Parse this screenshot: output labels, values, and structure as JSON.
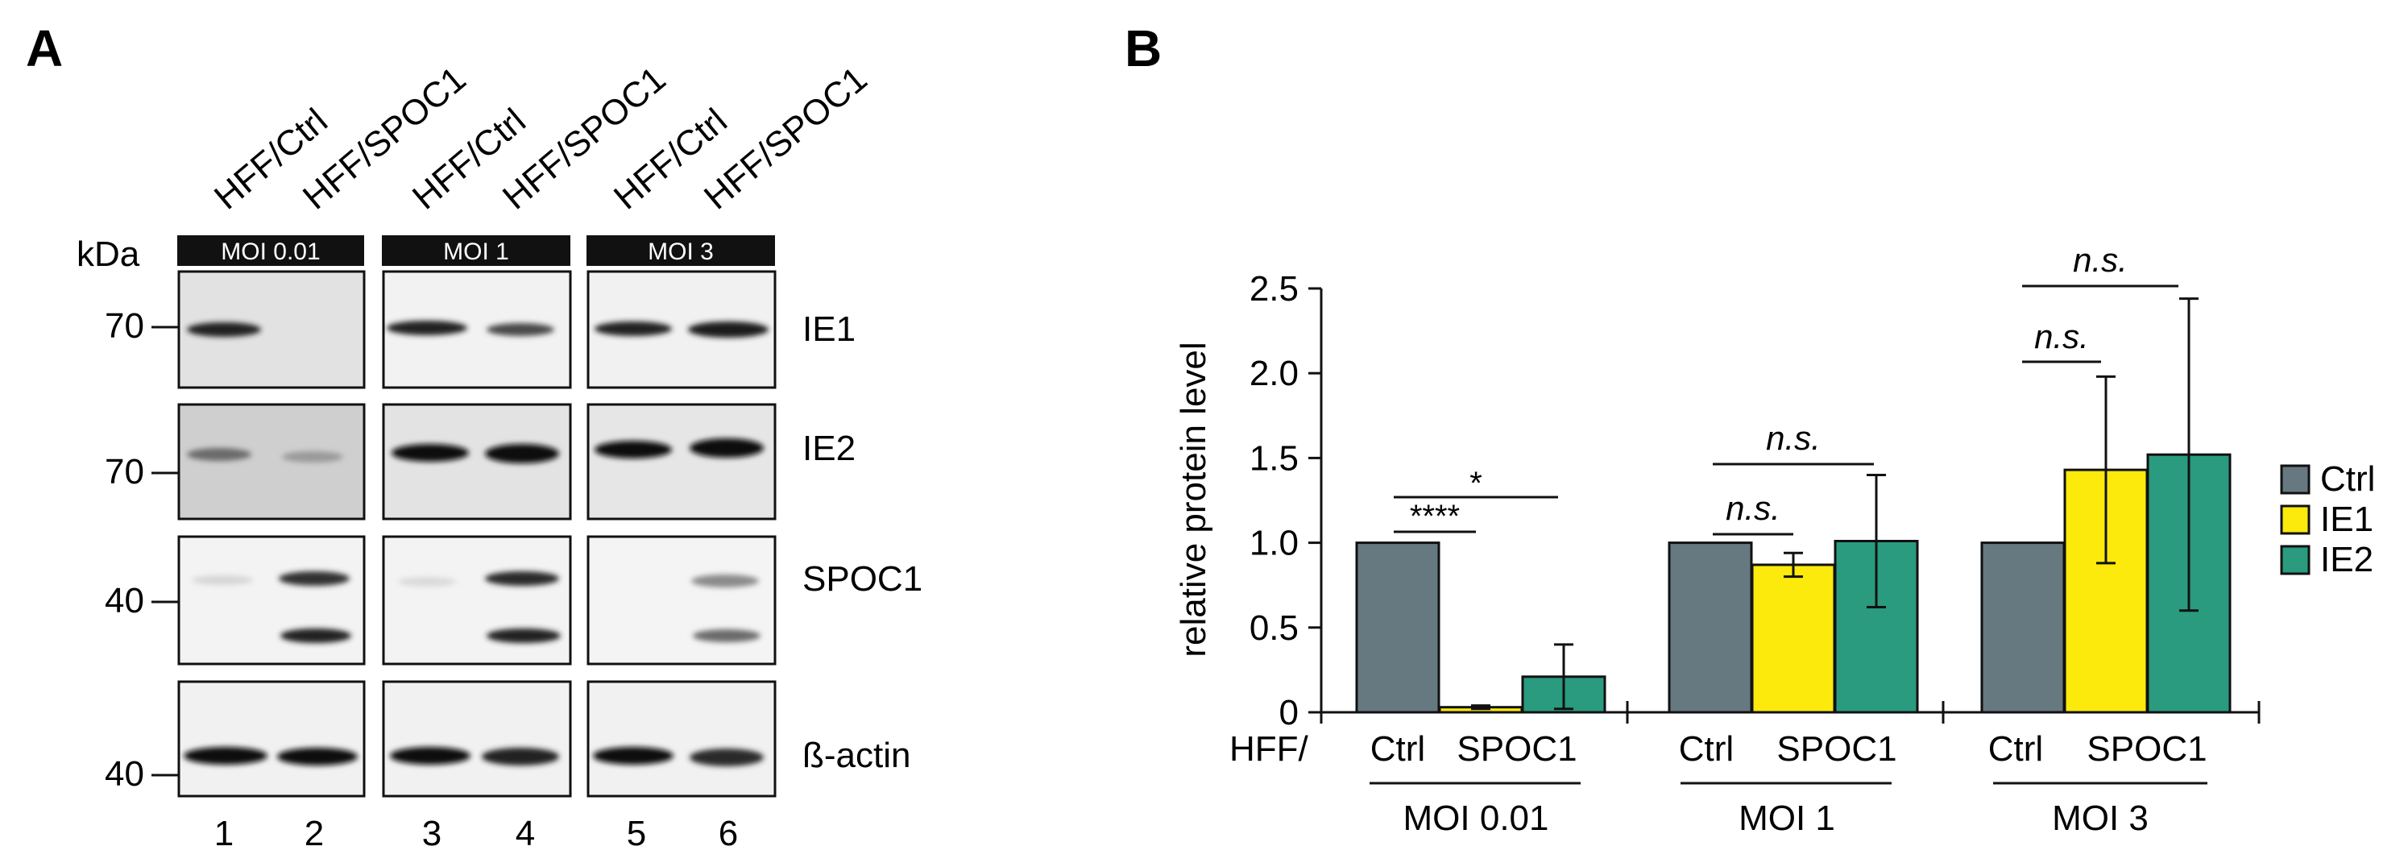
{
  "panel_a": {
    "label": "A",
    "kda_label": "kDa",
    "lane_headers": [
      "HFF/Ctrl",
      "HFF/SPOC1",
      "HFF/Ctrl",
      "HFF/SPOC1",
      "HFF/Ctrl",
      "HFF/SPOC1"
    ],
    "moi_groups": [
      "MOI 0.01",
      "MOI 1",
      "MOI 3"
    ],
    "rows": [
      {
        "protein": "IE1",
        "marker": "70"
      },
      {
        "protein": "IE2",
        "marker": "70"
      },
      {
        "protein": "SPOC1",
        "marker": "40"
      },
      {
        "protein": "ß-actin",
        "marker": "40"
      }
    ],
    "lane_numbers": [
      "1",
      "2",
      "3",
      "4",
      "5",
      "6"
    ]
  },
  "panel_b": {
    "label": "B",
    "hff_prefix": "HFF/",
    "x_labels": [
      "Ctrl",
      "SPOC1",
      "Ctrl",
      "SPOC1",
      "Ctrl",
      "SPOC1"
    ],
    "significance": [
      {
        "group": "MOI 0.01",
        "compare": "Ctrl vs IE1",
        "label": "****"
      },
      {
        "group": "MOI 0.01",
        "compare": "Ctrl vs IE2",
        "label": "*"
      },
      {
        "group": "MOI 1",
        "compare": "Ctrl vs IE1",
        "label": "n.s."
      },
      {
        "group": "MOI 1",
        "compare": "Ctrl vs IE2",
        "label": "n.s."
      },
      {
        "group": "MOI 3",
        "compare": "Ctrl vs IE1",
        "label": "n.s."
      },
      {
        "group": "MOI 3",
        "compare": "Ctrl vs IE2",
        "label": "n.s."
      }
    ]
  },
  "chart_data": {
    "type": "bar",
    "title": "",
    "xlabel": "",
    "ylabel": "relative protein level",
    "categories": [
      "MOI 0.01",
      "MOI 1",
      "MOI 3"
    ],
    "ylim": [
      0,
      2.5
    ],
    "yticks": [
      0,
      0.5,
      1.0,
      1.5,
      2.0,
      2.5
    ],
    "ytick_labels": [
      "0",
      "0.5",
      "1.0",
      "1.5",
      "2.0",
      "2.5"
    ],
    "legend_position": "right",
    "series": [
      {
        "name": "Ctrl",
        "color": "#667880",
        "values": [
          1.0,
          1.0,
          1.0
        ],
        "err": [
          0,
          0,
          0
        ]
      },
      {
        "name": "IE1",
        "color": "#fbea0c",
        "values": [
          0.03,
          0.87,
          1.43
        ],
        "err": [
          0.01,
          0.07,
          0.55
        ]
      },
      {
        "name": "IE2",
        "color": "#2a9b7f",
        "values": [
          0.21,
          1.01,
          1.52
        ],
        "err": [
          0.19,
          0.39,
          0.92
        ]
      }
    ]
  }
}
